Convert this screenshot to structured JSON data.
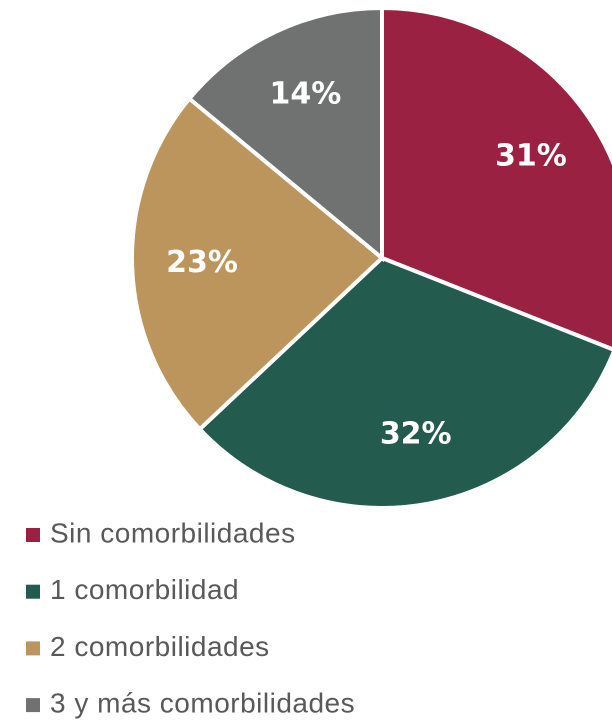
{
  "chart_data": {
    "type": "pie",
    "categories": [
      "Sin comorbilidades",
      "1 comorbilidad",
      "2 comorbilidades",
      "3 y más comorbilidades"
    ],
    "values": [
      31,
      32,
      23,
      14
    ],
    "value_labels": [
      "31%",
      "32%",
      "23%",
      "14%"
    ],
    "colors": [
      "#9b2142",
      "#235b4e",
      "#bc955c",
      "#6f7271"
    ],
    "legend": "bottom"
  }
}
